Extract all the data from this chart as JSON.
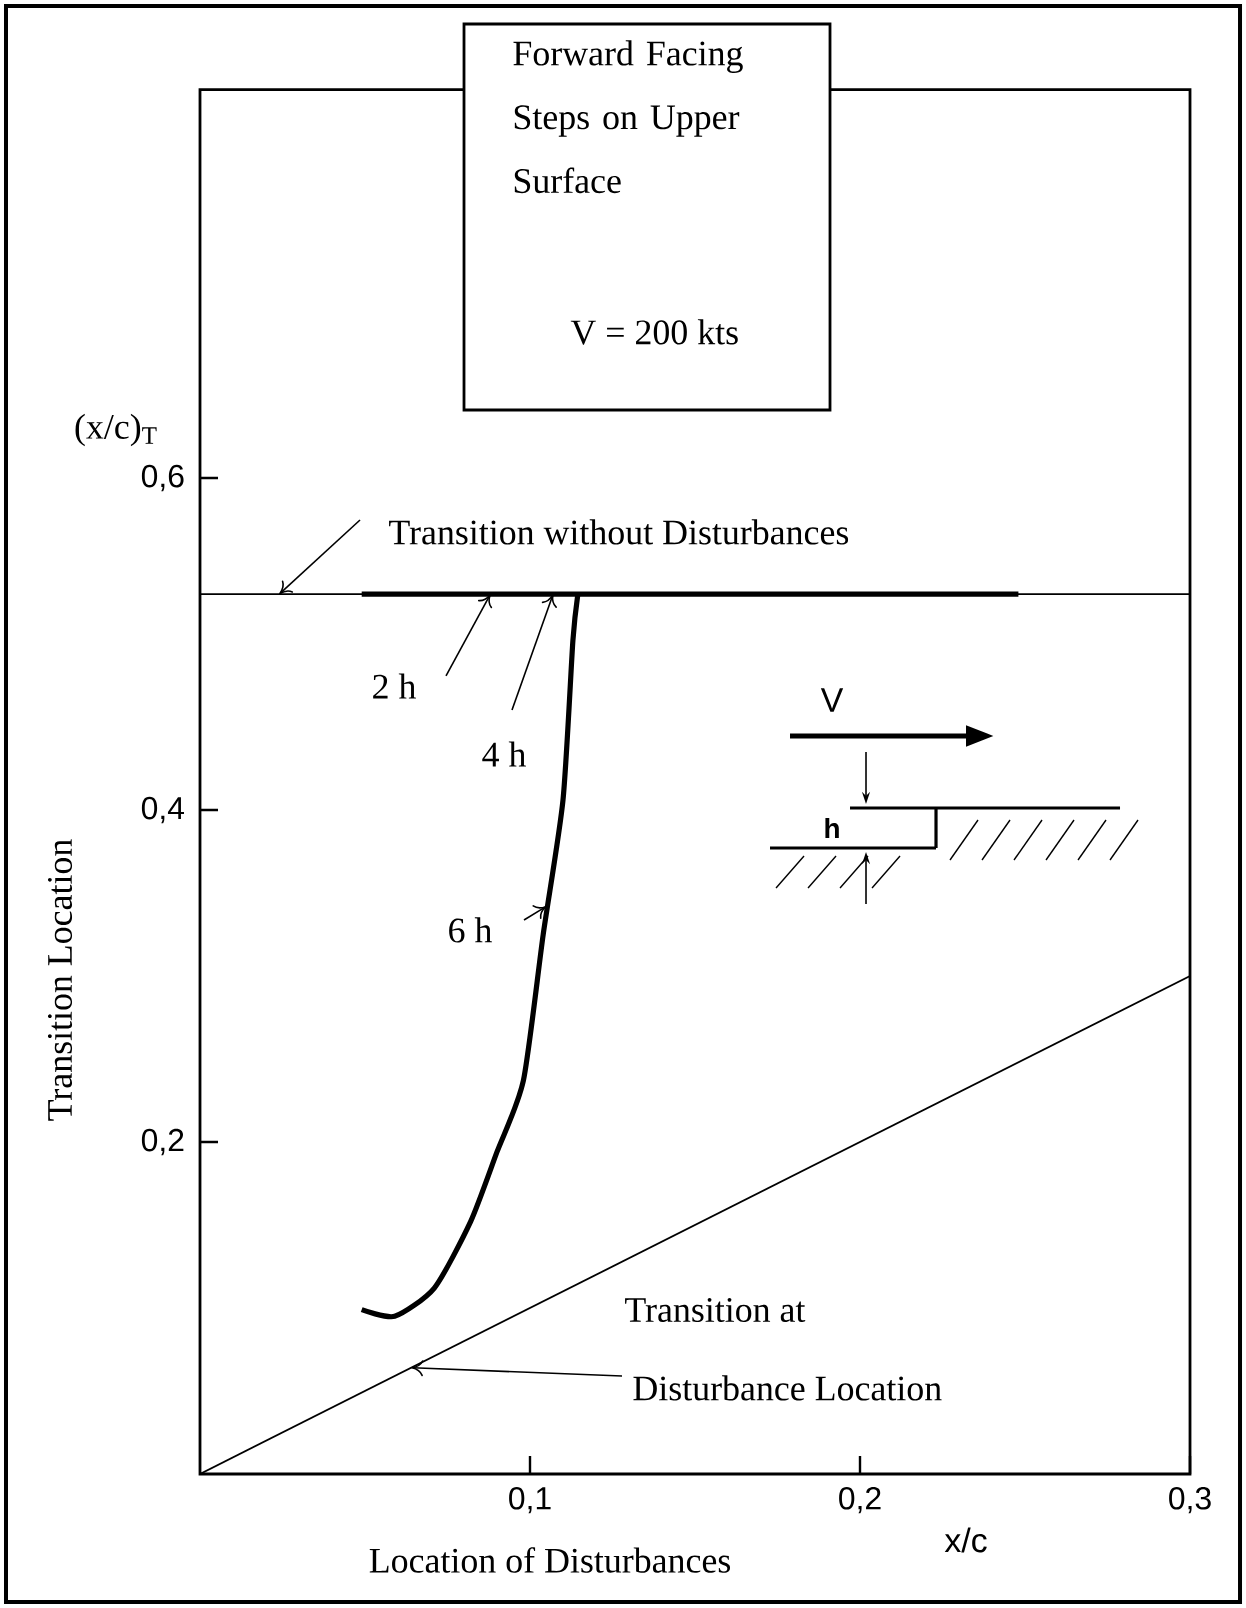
{
  "chart_data": {
    "type": "line",
    "title": "Forward Facing Steps on Upper Surface",
    "subtitle": "V = 200 kts",
    "xlabel": "x/c",
    "ylabel": "Transition Location",
    "xlim": [
      0,
      0.3
    ],
    "ylim": [
      0,
      0.834
    ],
    "xticks": [
      {
        "value": 0.1,
        "label": "0,1"
      },
      {
        "value": 0.2,
        "label": "0,2"
      },
      {
        "value": 0.3,
        "label": "0,3"
      }
    ],
    "yticks": [
      {
        "value": 0.2,
        "label": "0,2"
      },
      {
        "value": 0.4,
        "label": "0,4"
      },
      {
        "value": 0.6,
        "label": "0,6"
      }
    ],
    "series": [
      {
        "color": "#000000",
        "x": [
          0.049,
          0.059,
          0.071,
          0.082,
          0.09,
          0.098,
          0.104,
          0.11,
          0.113,
          0.1145
        ],
        "values": [
          0.099,
          0.095,
          0.112,
          0.152,
          0.194,
          0.237,
          0.325,
          0.406,
          0.502,
          0.53
        ]
      },
      {
        "color": "#000000",
        "x": [
          0.049,
          0.248
        ],
        "values": [
          0.53,
          0.53
        ]
      },
      {
        "color": "#000000",
        "x": [
          0,
          0.3
        ],
        "values": [
          0,
          0.3
        ]
      }
    ],
    "ref_lines": [
      {
        "axis": "y",
        "value": 0.53
      }
    ],
    "annotations": [
      "(x/c)$_{T}$",
      "Location of Disturbances",
      "Transition at",
      {
        "text": "2 h",
        "x": 0.088,
        "y": 0.53
      },
      {
        "text": "4 h",
        "x": 0.107,
        "y": 0.53
      },
      {
        "text": "6 h",
        "x": 0.105,
        "y": 0.342
      },
      "V",
      "h",
      {
        "text": "Transition without Disturbances",
        "x": 0.024,
        "y": 0.53
      },
      {
        "text": "Disturbance Location",
        "x": 0.064,
        "y": 0.064
      }
    ],
    "grid": false,
    "marker": "none",
    "line_style": "solid"
  }
}
